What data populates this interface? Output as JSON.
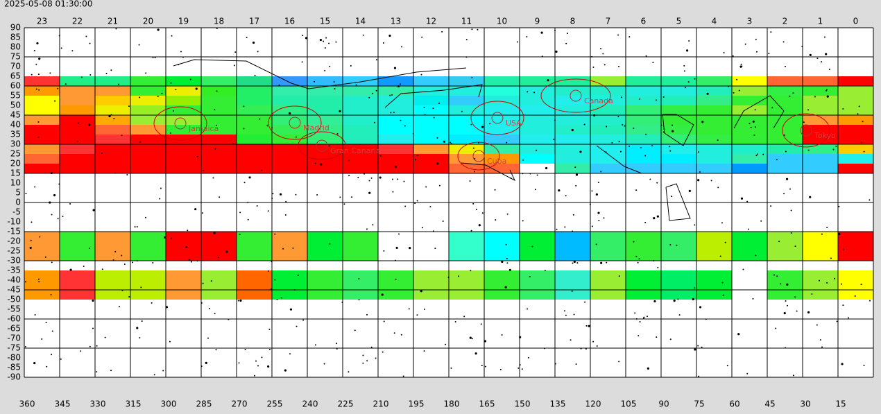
{
  "timestamp": "2025-05-08 01:30:00",
  "hour_labels": [
    23,
    22,
    21,
    20,
    19,
    18,
    17,
    16,
    15,
    14,
    13,
    12,
    11,
    10,
    9,
    8,
    7,
    6,
    5,
    4,
    3,
    2,
    1,
    0
  ],
  "dec_labels": [
    90,
    85,
    80,
    75,
    70,
    65,
    60,
    55,
    50,
    45,
    40,
    35,
    30,
    25,
    20,
    15,
    10,
    5,
    0,
    -5,
    -10,
    -15,
    -20,
    -25,
    -30,
    -35,
    -40,
    -45,
    -50,
    -55,
    -60,
    -65,
    -70,
    -75,
    -80,
    -85,
    -90
  ],
  "ra_labels": [
    360,
    345,
    330,
    315,
    300,
    285,
    270,
    255,
    240,
    225,
    210,
    195,
    180,
    165,
    150,
    135,
    120,
    105,
    90,
    75,
    60,
    45,
    30,
    15
  ],
  "places": [
    "Canada",
    "USA",
    "Cuba",
    "Tokyo",
    "Gran Canaria",
    "Madrid",
    "Jamaica"
  ],
  "heatmap": {
    "rows": [
      [
        "#f33",
        "#2e8",
        "#2e8",
        "#3e3",
        "#0e3",
        "#3e6",
        "#2d8",
        "#39f",
        "#3bf",
        "#3cf",
        "#19f",
        "#3cf",
        "#3ce",
        "#2ea",
        "#2e9",
        "#2e9",
        "#9e3",
        "#2e9",
        "#2e9",
        "#3e6",
        "#ff0",
        "#f63",
        "#f63",
        "#f00"
      ],
      [
        "#f90",
        "#f93",
        "#f93",
        "#3e3",
        "#ee0",
        "#3e2",
        "#2e6",
        "#3ea",
        "#3ea",
        "#3ea",
        "#3ea",
        "#2ed",
        "#2ed",
        "#2fd",
        "#2ed",
        "#2ec",
        "#2ec",
        "#2ed",
        "#2ed",
        "#2eb",
        "#9e3",
        "#3e4",
        "#3e3",
        "#9e3"
      ],
      [
        "#ff0",
        "#f93",
        "#fc0",
        "#ee0",
        "#9e0",
        "#3e3",
        "#2e6",
        "#2ea",
        "#2ea",
        "#2ec",
        "#2ed",
        "#0ee",
        "#3cf",
        "#2ed",
        "#2ed",
        "#2ee",
        "#2ed",
        "#2ec",
        "#2eb",
        "#3e8",
        "#3e3",
        "#3e3",
        "#9e3",
        "#9e3"
      ],
      [
        "#ff0",
        "#f90",
        "#ee0",
        "#9e2",
        "#3e3",
        "#3e3",
        "#3e5",
        "#3e8",
        "#2ea",
        "#2ec",
        "#2ed",
        "#0ff",
        "#2ed",
        "#2ee",
        "#2ee",
        "#2ed",
        "#2eb",
        "#3e7",
        "#3e4",
        "#3e3",
        "#9e3",
        "#3e3",
        "#9e3",
        "#9e3"
      ],
      [
        "#f93",
        "#f00",
        "#fa0",
        "#9e3",
        "#9e3",
        "#3e3",
        "#3e3",
        "#3e7",
        "#3e9",
        "#2ec",
        "#0ff",
        "#0ff",
        "#0ff",
        "#2ee",
        "#2ed",
        "#2ed",
        "#2ec",
        "#3e7",
        "#3e3",
        "#3e3",
        "#3e3",
        "#3e3",
        "#f93",
        "#f90"
      ],
      [
        "#f00",
        "#f00",
        "#f63",
        "#f93",
        "#3e3",
        "#3e3",
        "#3e3",
        "#3e5",
        "#3e8",
        "#2eb",
        "#0ff",
        "#0ff",
        "#0ff",
        "#2ee",
        "#2ed",
        "#2ec",
        "#2eb",
        "#3e8",
        "#3e4",
        "#3e3",
        "#3e3",
        "#3e3",
        "#f00",
        "#f00"
      ],
      [
        "#f00",
        "#f00",
        "#f33",
        "#f00",
        "#f00",
        "#f00",
        "#2e3",
        "#3e3",
        "#3e7",
        "#2eb",
        "#2ee",
        "#0ff",
        "#0ef",
        "#3cf",
        "#2ee",
        "#2ee",
        "#2ed",
        "#2eb",
        "#3e7",
        "#3e4",
        "#3e3",
        "#3e3",
        "#f00",
        "#f00"
      ],
      [
        "#f93",
        "#f33",
        "#f00",
        "#f00",
        "#f00",
        "#f00",
        "#f00",
        "#f00",
        "#f00",
        "#f00",
        "#f33",
        "#f93",
        "#ee0",
        "#3ea",
        "#2ed",
        "#2ed",
        "#2ee",
        "#0ef",
        "#2ee",
        "#2ed",
        "#2ec",
        "#2ea",
        "#3e8",
        "#fc0"
      ],
      [
        "#f63",
        "#f00",
        "#f00",
        "#f00",
        "#f00",
        "#f00",
        "#f00",
        "#f00",
        "#f00",
        "#f00",
        "#f00",
        "#f00",
        "#f93",
        "#f90",
        "#0ff",
        "#2ed",
        "#2ee",
        "#0ef",
        "#0ef",
        "#2ed",
        "#3ea",
        "#3cf",
        "#3cf",
        "#2ee"
      ],
      [
        "#f00",
        "#f00",
        "#f00",
        "#f00",
        "#f00",
        "#f00",
        "#f00",
        "#f00",
        "#f00",
        "#f00",
        "#f00",
        "#f00",
        "#f63",
        "#f63",
        null,
        "#3ea",
        "#3cf",
        "#3cf",
        "#3cf",
        "#3cf",
        "#09f",
        "#3cf",
        "#3cf",
        "#f00"
      ],
      [
        "#f93",
        "#3e3",
        "#f93",
        "#3e3",
        "#f00",
        "#f00",
        "#3e3",
        "#f93",
        "#0e3",
        "#3e3",
        null,
        null,
        "#3fc",
        "#0ff",
        "#0e3",
        "#0bf",
        "#3e6",
        "#3e3",
        "#3e6",
        "#be0",
        "#0e3",
        "#9e3",
        "#ff0",
        "#f00"
      ],
      [
        "#f90",
        "#f33",
        "#be0",
        "#be0",
        "#f93",
        "#9e3",
        "#f60",
        "#0e3",
        "#3e3",
        "#3e6",
        "#3e3",
        "#9e3",
        "#9e3",
        "#3e3",
        "#3e6",
        "#3ec",
        "#9e3",
        "#0e3",
        "#0e6",
        "#0e3",
        null,
        "#3e3",
        "#9e3",
        "#ff0"
      ],
      [
        "#f90",
        "#f33",
        "#be0",
        "#be0",
        "#f93",
        "#9e3",
        "#f60",
        "#0e3",
        "#3e3",
        "#3e6",
        "#3e3",
        "#9e3",
        "#9e3",
        "#3e3",
        "#3e6",
        "#3ec",
        "#9e3",
        "#0e3",
        "#0e6",
        "#0e3",
        null,
        "#3e3",
        "#9e3",
        "#ff0"
      ]
    ]
  }
}
